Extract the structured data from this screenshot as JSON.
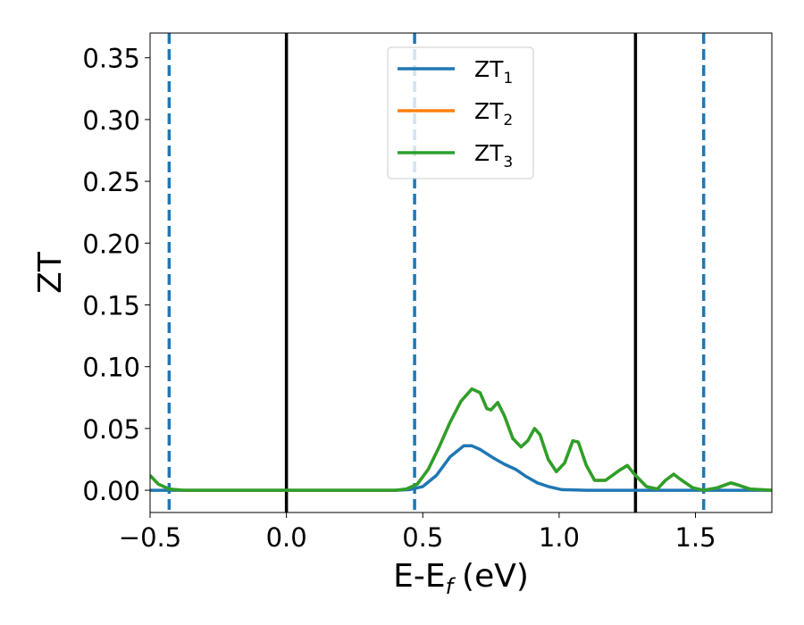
{
  "chart_data": {
    "type": "line",
    "xlabel": "E-E",
    "xlabel_sub": "f",
    "xlabel_unit": "(eV)",
    "ylabel": "ZT",
    "xlim": [
      -0.5,
      1.78
    ],
    "ylim": [
      -0.018,
      0.37
    ],
    "x_ticks": [
      -0.5,
      0.0,
      0.5,
      1.0,
      1.5
    ],
    "x_tick_labels": [
      "−0.5",
      "0.0",
      "0.5",
      "1.0",
      "1.5"
    ],
    "y_ticks": [
      0.0,
      0.05,
      0.1,
      0.15,
      0.2,
      0.25,
      0.3,
      0.35
    ],
    "y_tick_labels": [
      "0.00",
      "0.05",
      "0.10",
      "0.15",
      "0.20",
      "0.25",
      "0.30",
      "0.35"
    ],
    "grid": false,
    "legend_position": "top-center",
    "series": [
      {
        "name": "ZT",
        "name_sub": "1",
        "color": "#1f77b4",
        "points": [
          [
            -0.5,
            0
          ],
          [
            0.4,
            0
          ],
          [
            0.45,
            0.0005
          ],
          [
            0.5,
            0.003
          ],
          [
            0.55,
            0.012
          ],
          [
            0.6,
            0.027
          ],
          [
            0.65,
            0.036
          ],
          [
            0.68,
            0.036
          ],
          [
            0.71,
            0.033
          ],
          [
            0.76,
            0.026
          ],
          [
            0.8,
            0.021
          ],
          [
            0.84,
            0.017
          ],
          [
            0.88,
            0.011
          ],
          [
            0.92,
            0.006
          ],
          [
            0.96,
            0.003
          ],
          [
            1.01,
            0.0005
          ],
          [
            1.1,
            0
          ],
          [
            1.5,
            0
          ],
          [
            1.78,
            0
          ]
        ]
      },
      {
        "name": "ZT",
        "name_sub": "2",
        "color": "#ff7f0e",
        "points": [
          [
            -0.5,
            0.012
          ],
          [
            -0.47,
            0.005
          ],
          [
            -0.43,
            0.001
          ],
          [
            -0.38,
            0
          ],
          [
            0.4,
            0
          ],
          [
            0.44,
            0.001
          ],
          [
            0.48,
            0.005
          ],
          [
            0.52,
            0.017
          ],
          [
            0.56,
            0.035
          ],
          [
            0.6,
            0.055
          ],
          [
            0.64,
            0.072
          ],
          [
            0.68,
            0.082
          ],
          [
            0.71,
            0.079
          ],
          [
            0.735,
            0.066
          ],
          [
            0.75,
            0.065
          ],
          [
            0.775,
            0.071
          ],
          [
            0.8,
            0.06
          ],
          [
            0.83,
            0.042
          ],
          [
            0.86,
            0.035
          ],
          [
            0.885,
            0.04
          ],
          [
            0.91,
            0.05
          ],
          [
            0.93,
            0.045
          ],
          [
            0.96,
            0.025
          ],
          [
            0.99,
            0.015
          ],
          [
            1.02,
            0.022
          ],
          [
            1.05,
            0.04
          ],
          [
            1.07,
            0.039
          ],
          [
            1.1,
            0.02
          ],
          [
            1.13,
            0.008
          ],
          [
            1.17,
            0.008
          ],
          [
            1.22,
            0.016
          ],
          [
            1.25,
            0.02
          ],
          [
            1.28,
            0.012
          ],
          [
            1.32,
            0.003
          ],
          [
            1.36,
            0.001
          ],
          [
            1.39,
            0.008
          ],
          [
            1.42,
            0.013
          ],
          [
            1.45,
            0.008
          ],
          [
            1.49,
            0.002
          ],
          [
            1.53,
            0
          ],
          [
            1.58,
            0.002
          ],
          [
            1.63,
            0.006
          ],
          [
            1.66,
            0.004
          ],
          [
            1.7,
            0.001
          ],
          [
            1.78,
            0
          ]
        ]
      },
      {
        "name": "ZT",
        "name_sub": "3",
        "color": "#2ca02c",
        "points": [
          [
            -0.5,
            0.012
          ],
          [
            -0.47,
            0.005
          ],
          [
            -0.43,
            0.001
          ],
          [
            -0.38,
            0
          ],
          [
            0.4,
            0
          ],
          [
            0.44,
            0.001
          ],
          [
            0.48,
            0.005
          ],
          [
            0.52,
            0.017
          ],
          [
            0.56,
            0.035
          ],
          [
            0.6,
            0.055
          ],
          [
            0.64,
            0.072
          ],
          [
            0.68,
            0.082
          ],
          [
            0.71,
            0.079
          ],
          [
            0.735,
            0.066
          ],
          [
            0.75,
            0.065
          ],
          [
            0.775,
            0.071
          ],
          [
            0.8,
            0.06
          ],
          [
            0.83,
            0.042
          ],
          [
            0.86,
            0.035
          ],
          [
            0.885,
            0.04
          ],
          [
            0.91,
            0.05
          ],
          [
            0.93,
            0.045
          ],
          [
            0.96,
            0.025
          ],
          [
            0.99,
            0.015
          ],
          [
            1.02,
            0.022
          ],
          [
            1.05,
            0.04
          ],
          [
            1.07,
            0.039
          ],
          [
            1.1,
            0.02
          ],
          [
            1.13,
            0.008
          ],
          [
            1.17,
            0.008
          ],
          [
            1.22,
            0.016
          ],
          [
            1.25,
            0.02
          ],
          [
            1.28,
            0.012
          ],
          [
            1.32,
            0.003
          ],
          [
            1.36,
            0.001
          ],
          [
            1.39,
            0.008
          ],
          [
            1.42,
            0.013
          ],
          [
            1.45,
            0.008
          ],
          [
            1.49,
            0.002
          ],
          [
            1.53,
            0
          ],
          [
            1.58,
            0.002
          ],
          [
            1.63,
            0.006
          ],
          [
            1.66,
            0.004
          ],
          [
            1.7,
            0.001
          ],
          [
            1.78,
            0
          ]
        ]
      }
    ],
    "vertical_lines": [
      {
        "x": -0.43,
        "style": "dashed",
        "color": "#1f77b4"
      },
      {
        "x": 0.0,
        "style": "solid",
        "color": "#000000"
      },
      {
        "x": 0.47,
        "style": "dashed",
        "color": "#1f77b4"
      },
      {
        "x": 1.28,
        "style": "solid",
        "color": "#000000"
      },
      {
        "x": 1.53,
        "style": "dashed",
        "color": "#1f77b4"
      }
    ]
  }
}
